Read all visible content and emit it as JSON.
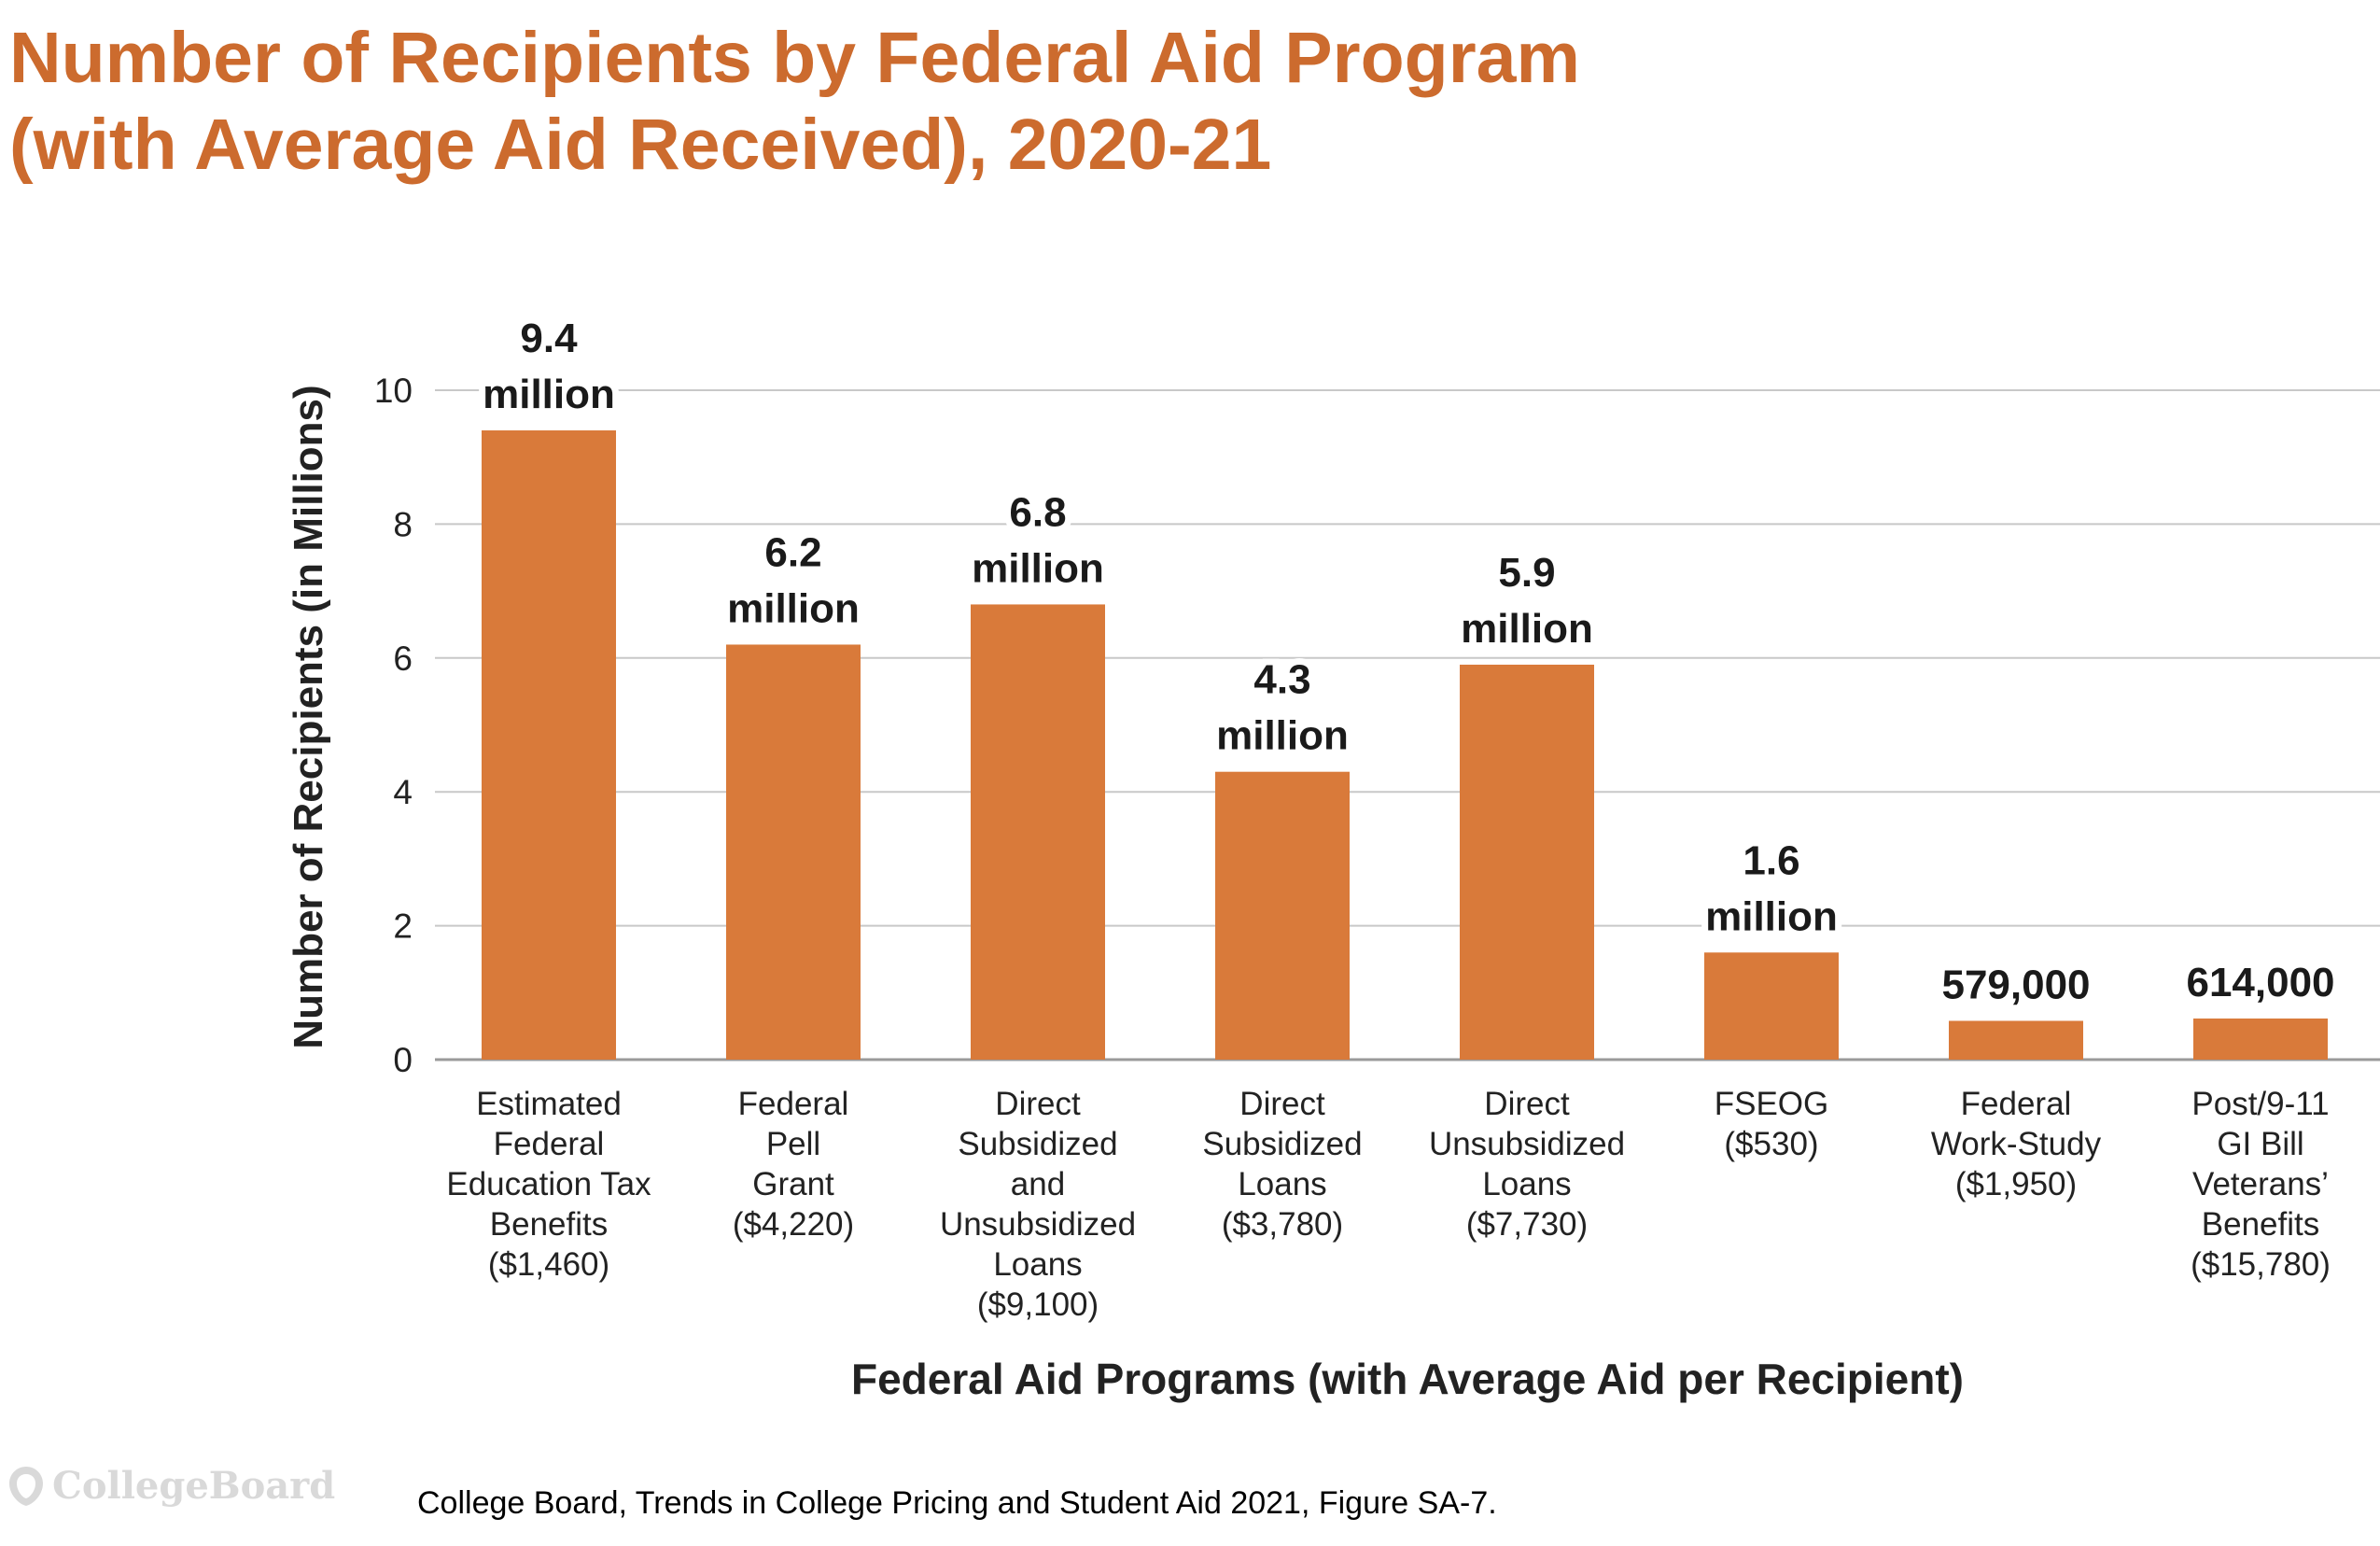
{
  "chart_data": {
    "type": "bar",
    "title_lines": [
      "Number of Recipients by Federal Aid Program",
      "(with Average Aid Received), 2020-21"
    ],
    "xlabel": "Federal Aid Programs (with Average Aid per Recipient)",
    "ylabel": "Number of Recipients (in Millions)",
    "ylim": [
      0,
      10
    ],
    "yticks": [
      "0",
      "2",
      "4",
      "6",
      "8",
      "10"
    ],
    "grid": true,
    "categories": [
      [
        "Estimated",
        "Federal",
        "Education Tax",
        "Benefits",
        "($1,460)"
      ],
      [
        "Federal",
        "Pell",
        "Grant",
        "($4,220)"
      ],
      [
        "Direct",
        "Subsidized",
        "and",
        "Unsubsidized",
        "Loans",
        "($9,100)"
      ],
      [
        "Direct",
        "Subsidized",
        "Loans",
        "($3,780)"
      ],
      [
        "Direct",
        "Unsubsidized",
        "Loans",
        "($7,730)"
      ],
      [
        "FSEOG",
        "($530)"
      ],
      [
        "Federal",
        "Work-Study",
        "($1,950)"
      ],
      [
        "Post/9-11",
        "GI Bill",
        "Veterans’",
        "Benefits",
        "($15,780)"
      ]
    ],
    "values": [
      9.4,
      6.2,
      6.8,
      4.3,
      5.9,
      1.6,
      0.579,
      0.614
    ],
    "data_labels": [
      [
        "9.4",
        "million"
      ],
      [
        "6.2",
        "million"
      ],
      [
        "6.8",
        "million"
      ],
      [
        "4.3",
        "million"
      ],
      [
        "5.9",
        "million"
      ],
      [
        "1.6",
        "million"
      ],
      [
        "579,000"
      ],
      [
        "614,000"
      ]
    ],
    "bar_color": "#d97a3a"
  },
  "source": "College Board, Trends in College Pricing and Student Aid 2021, Figure SA-7.",
  "logo": {
    "text": "CollegeBoard",
    "icon": "acorn-icon"
  },
  "colors": {
    "title": "#cc6b2e",
    "bar": "#d97a3a",
    "grid": "#c8c8c8"
  }
}
